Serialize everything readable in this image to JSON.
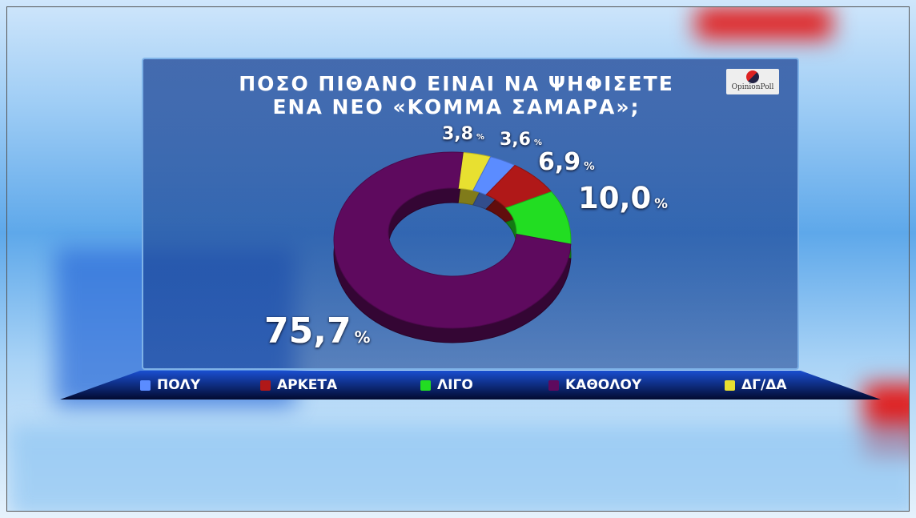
{
  "title_line1": "ΠΟΣΟ ΠΙΘΑΝΟ ΕΙΝΑΙ ΝΑ ΨΗΦΙΣΕΤΕ",
  "title_line2": "ΕΝΑ ΝΕΟ «ΚΟΜΜΑ ΣΑΜΑΡΑ»;",
  "logo_text": "OpinionPoll",
  "chart_data": {
    "type": "pie",
    "title": "ΠΟΣΟ ΠΙΘΑΝΟ ΕΙΝΑΙ ΝΑ ΨΗΦΙΣΕΤΕ ΕΝΑ ΝΕΟ «ΚΟΜΜΑ ΣΑΜΑΡΑ»;",
    "donut": true,
    "legend_position": "bottom",
    "categories": [
      "ΠΟΛΥ",
      "ΑΡΚΕΤΑ",
      "ΛΙΓΟ",
      "ΚΑΘΟΛΟΥ",
      "ΔΓ/ΔΑ"
    ],
    "values": [
      3.6,
      6.9,
      10.0,
      75.7,
      3.8
    ],
    "labels": [
      "3,6",
      "6,9",
      "10,0",
      "75,7",
      "3,8"
    ],
    "unit": "%",
    "colors": [
      "#5b8cff",
      "#b01818",
      "#22dd22",
      "#5e0a5e",
      "#e8e030"
    ]
  }
}
